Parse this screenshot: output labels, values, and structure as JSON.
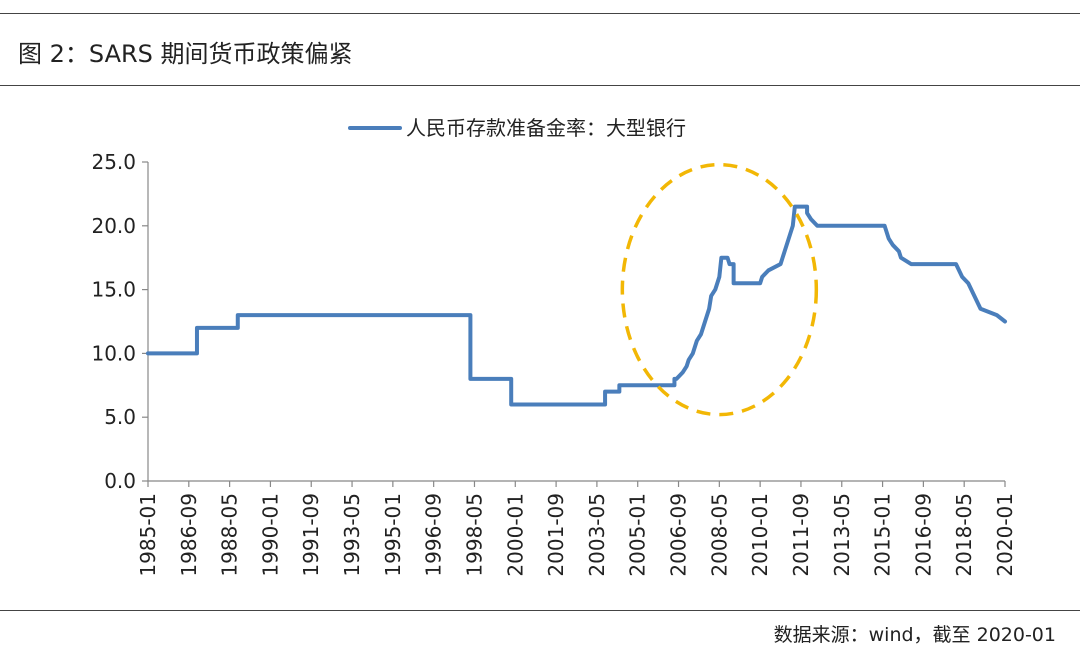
{
  "figure": {
    "title": "图 2：SARS 期间货币政策偏紧",
    "source": "数据来源：wind，截至 2020-01"
  },
  "chart_data": {
    "type": "line",
    "title": "",
    "xlabel": "",
    "ylabel": "",
    "ylim": [
      0,
      25
    ],
    "grid": false,
    "legend_placement": "top-center",
    "y_ticks": [
      "0.0",
      "5.0",
      "10.0",
      "15.0",
      "20.0",
      "25.0"
    ],
    "x_ticks": [
      "1985-01",
      "1986-09",
      "1988-05",
      "1990-01",
      "1991-09",
      "1993-05",
      "1995-01",
      "1996-09",
      "1998-05",
      "2000-01",
      "2001-09",
      "2003-05",
      "2005-01",
      "2006-09",
      "2008-05",
      "2010-01",
      "2011-09",
      "2013-05",
      "2015-01",
      "2016-09",
      "2018-05",
      "2020-01"
    ],
    "series": [
      {
        "name": "人民币存款准备金率：大型银行",
        "color": "#4a7ebb",
        "points": [
          [
            "1985-01",
            10.0
          ],
          [
            "1987-01",
            10.0
          ],
          [
            "1987-01",
            12.0
          ],
          [
            "1988-09",
            12.0
          ],
          [
            "1988-09",
            13.0
          ],
          [
            "1998-03",
            13.0
          ],
          [
            "1998-03",
            8.0
          ],
          [
            "1999-11",
            8.0
          ],
          [
            "1999-11",
            6.0
          ],
          [
            "2003-09",
            6.0
          ],
          [
            "2003-09",
            7.0
          ],
          [
            "2004-04",
            7.0
          ],
          [
            "2004-04",
            7.5
          ],
          [
            "2006-07",
            7.5
          ],
          [
            "2006-07",
            8.0
          ],
          [
            "2006-08",
            8.0
          ],
          [
            "2006-11",
            8.5
          ],
          [
            "2007-01",
            9.0
          ],
          [
            "2007-02",
            9.5
          ],
          [
            "2007-04",
            10.0
          ],
          [
            "2007-05",
            10.5
          ],
          [
            "2007-06",
            11.0
          ],
          [
            "2007-08",
            11.5
          ],
          [
            "2007-09",
            12.0
          ],
          [
            "2007-10",
            12.5
          ],
          [
            "2007-12",
            13.5
          ],
          [
            "2008-01",
            14.5
          ],
          [
            "2008-03",
            15.0
          ],
          [
            "2008-04",
            15.5
          ],
          [
            "2008-05",
            16.0
          ],
          [
            "2008-06",
            17.5
          ],
          [
            "2008-09",
            17.5
          ],
          [
            "2008-10",
            17.0
          ],
          [
            "2008-12",
            17.0
          ],
          [
            "2008-12",
            15.5
          ],
          [
            "2010-01",
            15.5
          ],
          [
            "2010-02",
            16.0
          ],
          [
            "2010-05",
            16.5
          ],
          [
            "2010-11",
            17.0
          ],
          [
            "2010-12",
            17.5
          ],
          [
            "2011-01",
            18.0
          ],
          [
            "2011-02",
            18.5
          ],
          [
            "2011-03",
            19.0
          ],
          [
            "2011-04",
            19.5
          ],
          [
            "2011-05",
            20.0
          ],
          [
            "2011-06",
            21.5
          ],
          [
            "2011-12",
            21.5
          ],
          [
            "2011-12",
            21.0
          ],
          [
            "2012-02",
            20.5
          ],
          [
            "2012-05",
            20.0
          ],
          [
            "2015-02",
            20.0
          ],
          [
            "2015-04",
            19.0
          ],
          [
            "2015-06",
            18.5
          ],
          [
            "2015-09",
            18.0
          ],
          [
            "2015-10",
            17.5
          ],
          [
            "2016-03",
            17.0
          ],
          [
            "2018-01",
            17.0
          ],
          [
            "2018-04",
            16.0
          ],
          [
            "2018-07",
            15.5
          ],
          [
            "2018-10",
            14.5
          ],
          [
            "2019-01",
            13.5
          ],
          [
            "2019-09",
            13.0
          ],
          [
            "2020-01",
            12.5
          ]
        ]
      }
    ],
    "annotations": [
      {
        "type": "ellipse",
        "style": "dashed",
        "color": "#f2b705",
        "x_center": "2008-05",
        "y_center": 15.0
      }
    ]
  }
}
